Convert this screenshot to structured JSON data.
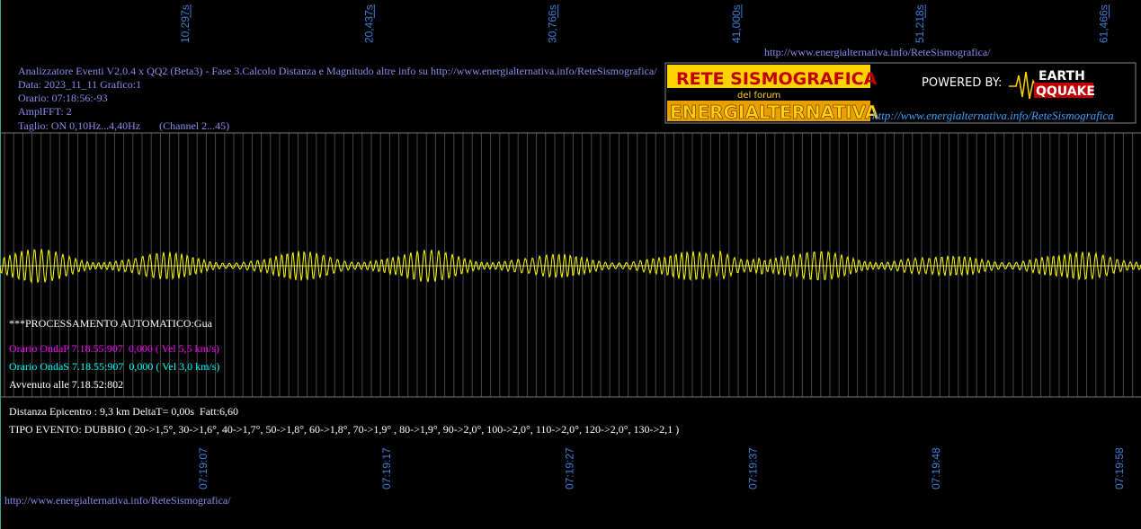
{
  "top_url": "http://www.energialternativa.info/ReteSismografica/",
  "header": [
    "Analizzatore Eventi V2.0.4 x QQ2 (Beta3) - Fase 3.Calcolo Distanza e Magnitudo altre info su http://www.energialternativa.info/ReteSismografica/",
    "Data: 2023_11_11 Grafico:1",
    "Orario: 07:18:56:-93",
    "AmplFFT: 2",
    "Taglio: ON 0,10Hz...4,40Hz       (Channel 2...45)"
  ],
  "logo": {
    "title": "RETE SISMOGRAFICA",
    "subtitle": "del forum",
    "brand": "ENERGIALTERNATIVA",
    "powered": "POWERED BY:",
    "earth": "EARTH",
    "quake": "QQUAKE",
    "url": "http://www.energialternativa.info/ReteSismografica"
  },
  "top_axis": [
    "10,297s",
    "20,437s",
    "30,766s",
    "41,000s",
    "51,218s",
    "61,466s"
  ],
  "processing": {
    "title": "***PROCESSAMENTO AUTOMATICO:Gua",
    "onda_p": "Orario OndaP 7.18.55:907  0,000 ( Vel 5,5 km/s)",
    "onda_s": "Orario OndaS 7.18.55:907  0,000 ( Vel 3,0 km/s)",
    "avvenuto": "Avvenuto alle 7.18.52:802"
  },
  "summary": {
    "distance": "Distanza Epicentro : 9,3 km DeltaT= 0,00s  Fatt:6,60",
    "event_type": "TIPO EVENTO: DUBBIO ( 20->1,5°, 30->1,6°, 40->1,7°, 50->1,8°, 60->1,8°, 70->1,9° , 80->1,9°, 90->2,0°, 100->2,0°, 110->2,0°, 120->2,0°, 130->2,1 )"
  },
  "bottom_axis": [
    "07:19:07",
    "07:19:17",
    "07:19:27",
    "07:19:37",
    "07:19:48",
    "07:19:58"
  ],
  "bottom_url": "http://www.energialternativa.info/ReteSismografica/"
}
